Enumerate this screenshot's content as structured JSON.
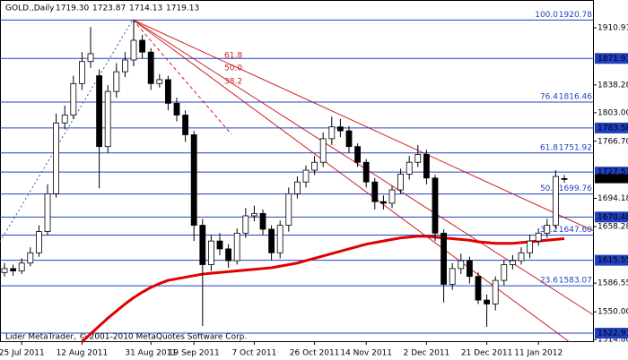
{
  "chart_data": {
    "type": "candlestick",
    "title": "GOLD.,Daily",
    "header_labels": [
      "1719.30",
      "1723.87",
      "1714.13",
      "1719.13"
    ],
    "footer": "Lider MetaTrader, © 2001-2010 MetaQuotes Software Corp.",
    "categories": [
      null,
      null,
      "25 Jul 2011",
      null,
      null,
      null,
      null,
      null,
      null,
      "12 Aug 2011",
      null,
      null,
      null,
      null,
      null,
      null,
      null,
      "31 Aug 2011",
      null,
      null,
      null,
      null,
      "19 Sep 2011",
      null,
      null,
      null,
      null,
      null,
      null,
      "7 Oct 2011",
      null,
      null,
      null,
      null,
      null,
      null,
      "26 Oct 2011",
      null,
      null,
      null,
      null,
      null,
      "14 Nov 2011",
      null,
      null,
      null,
      null,
      null,
      null,
      "2 Dec 2011",
      null,
      null,
      null,
      null,
      null,
      null,
      "21 Dec 2011",
      null,
      null,
      null,
      null,
      null,
      "11 Jan 2012",
      null,
      null,
      null
    ],
    "open": [
      1600,
      1605,
      1602,
      1612,
      1625,
      1652,
      1700,
      1790,
      1800,
      1840,
      1868,
      1850,
      1760,
      1830,
      1855,
      1870,
      1895,
      1880,
      1840,
      1845,
      1815,
      1800,
      1775,
      1660,
      1610,
      1640,
      1630,
      1615,
      1650,
      1672,
      1675,
      1655,
      1625,
      1660,
      1700,
      1715,
      1730,
      1740,
      1770,
      1785,
      1780,
      1760,
      1740,
      1715,
      1690,
      1688,
      1705,
      1725,
      1740,
      1750,
      1720,
      1650,
      1585,
      1605,
      1615,
      1595,
      1565,
      1560,
      1590,
      1610,
      1615,
      1625,
      1640,
      1650,
      1660,
      1719.3
    ],
    "high": [
      1612,
      1610,
      1618,
      1632,
      1660,
      1712,
      1802,
      1812,
      1850,
      1880,
      1912,
      1858,
      1838,
      1866,
      1880,
      1920.78,
      1902,
      1885,
      1852,
      1850,
      1822,
      1806,
      1780,
      1668,
      1648,
      1650,
      1636,
      1656,
      1682,
      1685,
      1680,
      1660,
      1666,
      1708,
      1722,
      1736,
      1748,
      1778,
      1798,
      1795,
      1786,
      1764,
      1744,
      1720,
      1698,
      1710,
      1732,
      1748,
      1762,
      1756,
      1724,
      1655,
      1612,
      1624,
      1620,
      1600,
      1572,
      1595,
      1616,
      1622,
      1632,
      1648,
      1656,
      1668,
      1730,
      1723.87
    ],
    "low": [
      1595,
      1596,
      1598,
      1608,
      1620,
      1648,
      1695,
      1782,
      1795,
      1832,
      1860,
      1707,
      1752,
      1822,
      1848,
      1862,
      1872,
      1832,
      1835,
      1806,
      1792,
      1766,
      1640,
      1532,
      1602,
      1622,
      1606,
      1610,
      1644,
      1665,
      1648,
      1616,
      1618,
      1652,
      1694,
      1708,
      1724,
      1734,
      1762,
      1772,
      1752,
      1734,
      1708,
      1680,
      1680,
      1682,
      1700,
      1718,
      1734,
      1712,
      1640,
      1562,
      1578,
      1598,
      1586,
      1560,
      1531,
      1552,
      1584,
      1604,
      1610,
      1618,
      1634,
      1644,
      1656,
      1714.13
    ],
    "close": [
      1605,
      1602,
      1612,
      1625,
      1652,
      1700,
      1790,
      1800,
      1840,
      1868,
      1878,
      1760,
      1830,
      1855,
      1870,
      1895,
      1880,
      1840,
      1845,
      1815,
      1800,
      1775,
      1660,
      1610,
      1640,
      1630,
      1615,
      1650,
      1672,
      1675,
      1655,
      1625,
      1660,
      1700,
      1715,
      1730,
      1740,
      1770,
      1785,
      1780,
      1760,
      1740,
      1715,
      1690,
      1688,
      1705,
      1725,
      1740,
      1750,
      1720,
      1650,
      1585,
      1605,
      1615,
      1595,
      1565,
      1560,
      1590,
      1610,
      1615,
      1625,
      1640,
      1650,
      1660,
      1722,
      1719.13
    ],
    "ma": {
      "color": "#e00000",
      "values": [
        null,
        null,
        null,
        null,
        null,
        null,
        null,
        null,
        null,
        1512,
        1522,
        1532,
        1542,
        1551,
        1560,
        1568,
        1575,
        1581,
        1586,
        1590,
        1592,
        1594,
        1596,
        1598,
        1599,
        1600,
        1601,
        1602,
        1603,
        1604,
        1605,
        1606,
        1608,
        1610,
        1612,
        1615,
        1618,
        1621,
        1624,
        1627,
        1630,
        1633,
        1636,
        1638,
        1640,
        1642,
        1644,
        1645,
        1646,
        1646,
        1645,
        1644,
        1643,
        1642,
        1641,
        1639,
        1638,
        1637,
        1637,
        1637,
        1638,
        1639,
        1640,
        1641,
        1642,
        1643
      ]
    },
    "ylim": [
      1511.6,
      1946.18
    ],
    "yticks": [
      1910.91,
      1838.28,
      {
        "value": 1803,
        "label": "1803.00"
      },
      {
        "value": 1766.7,
        "label": "1766.70"
      },
      1694.18,
      1658.28,
      1586.55,
      {
        "value": 1550,
        "label": "1550.00"
      },
      {
        "value": 1514.8,
        "label": "1514.80"
      }
    ],
    "levels": [
      1871.91,
      1783.58,
      1727.57,
      1670.48,
      1615.55,
      1522.91
    ],
    "fib_levels": [
      {
        "ratio": "100.0",
        "value": 1920.78,
        "label": "1920.78"
      },
      {
        "ratio": "76.4",
        "value": 1816.46,
        "label": "1816.46"
      },
      {
        "ratio": "61.8",
        "value": 1751.92,
        "label": "1751.92"
      },
      {
        "ratio": "50.0",
        "value": 1699.76,
        "label": "1699.76"
      },
      {
        "ratio": "38.2",
        "value": 1647.6,
        "label": "1647.60"
      },
      {
        "ratio": "23.6",
        "value": 1583.07,
        "label": "1583.07"
      }
    ],
    "fan_labels": [
      "61.8",
      "50.0",
      "38.2"
    ],
    "level_color": "#2040c0",
    "up_color": "#ffffff",
    "down_color": "#000000"
  }
}
